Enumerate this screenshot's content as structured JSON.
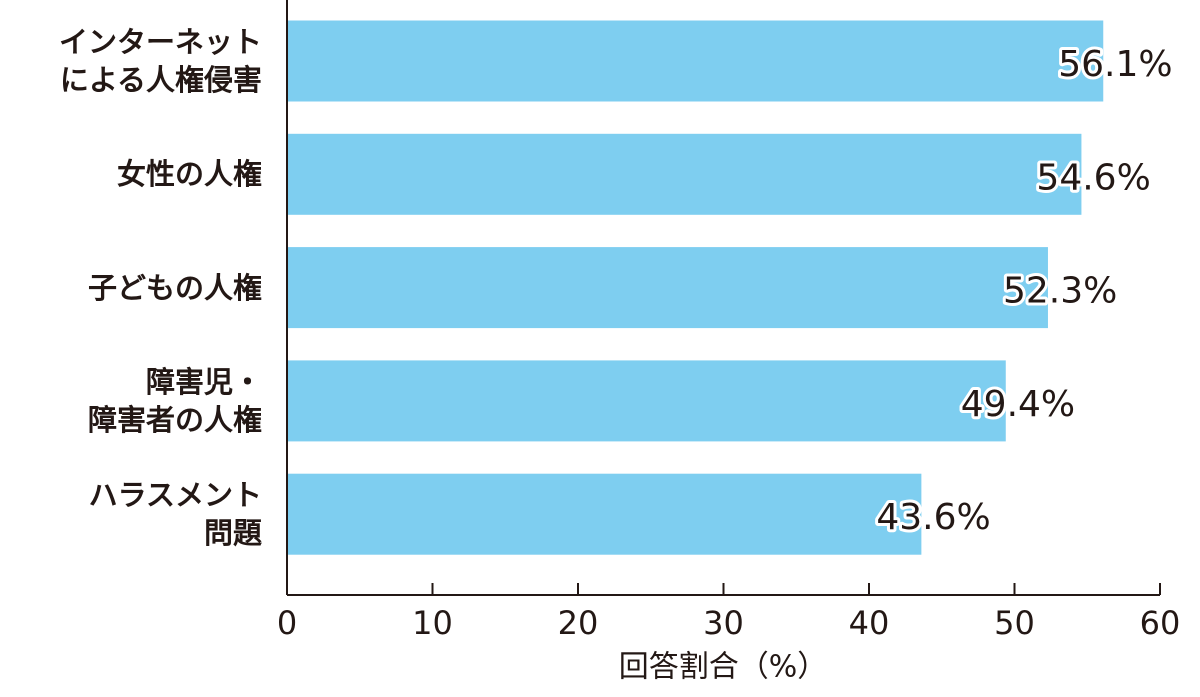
{
  "chart_data": {
    "type": "bar",
    "orientation": "horizontal",
    "categories": [
      "インターネット\nによる人権侵害",
      "女性の人権",
      "子どもの人権",
      "障害児・\n障害者の人権",
      "ハラスメント\n問題"
    ],
    "values": [
      56.1,
      54.6,
      52.3,
      49.4,
      43.6
    ],
    "value_labels": [
      "56.1%",
      "54.6%",
      "52.3%",
      "49.4%",
      "43.6%"
    ],
    "color": "#7ecef0",
    "xlim": [
      0,
      60
    ],
    "xticks": [
      0,
      10,
      20,
      30,
      40,
      50,
      60
    ],
    "x_label": "回答割合（%）",
    "grid": false
  }
}
